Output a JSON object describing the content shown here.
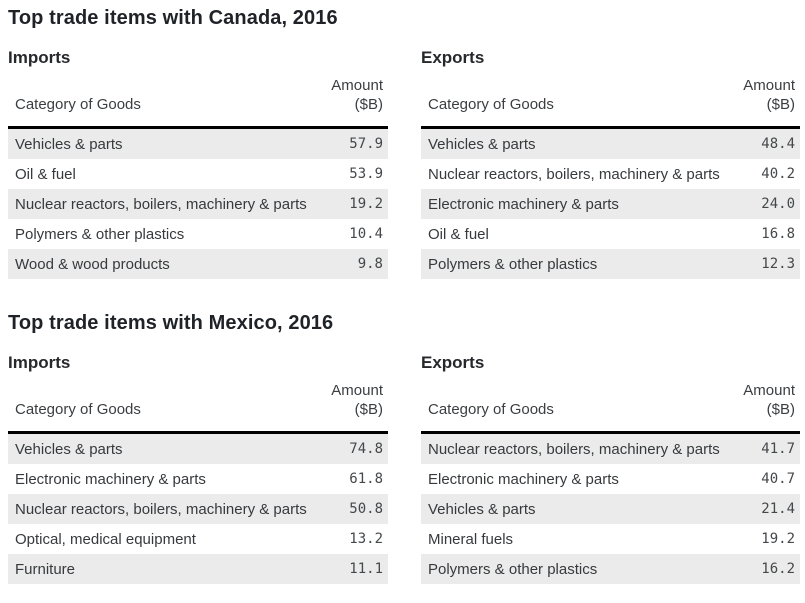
{
  "table_headers": {
    "category": "Category of Goods",
    "amount_line1": "Amount",
    "amount_line2": "($B)"
  },
  "colors": {
    "row_alt_bg": "#ebebeb",
    "header_rule": "#000000",
    "title_text": "#1f2227",
    "body_text": "#373a3d"
  },
  "sections": [
    {
      "title": "Top trade items with Canada, 2016",
      "tables": [
        {
          "heading": "Imports",
          "rows": [
            {
              "category": "Vehicles & parts",
              "amount": "57.9"
            },
            {
              "category": "Oil & fuel",
              "amount": "53.9"
            },
            {
              "category": "Nuclear reactors, boilers, machinery & parts",
              "amount": "19.2"
            },
            {
              "category": "Polymers & other plastics",
              "amount": "10.4"
            },
            {
              "category": "Wood & wood products",
              "amount": "9.8"
            }
          ]
        },
        {
          "heading": "Exports",
          "rows": [
            {
              "category": "Vehicles & parts",
              "amount": "48.4"
            },
            {
              "category": "Nuclear reactors, boilers, machinery & parts",
              "amount": "40.2"
            },
            {
              "category": "Electronic machinery & parts",
              "amount": "24.0"
            },
            {
              "category": "Oil & fuel",
              "amount": "16.8"
            },
            {
              "category": "Polymers & other plastics",
              "amount": "12.3"
            }
          ]
        }
      ]
    },
    {
      "title": "Top trade items with Mexico, 2016",
      "tables": [
        {
          "heading": "Imports",
          "rows": [
            {
              "category": "Vehicles & parts",
              "amount": "74.8"
            },
            {
              "category": "Electronic machinery & parts",
              "amount": "61.8"
            },
            {
              "category": "Nuclear reactors, boilers, machinery & parts",
              "amount": "50.8"
            },
            {
              "category": "Optical, medical equipment",
              "amount": "13.2"
            },
            {
              "category": "Furniture",
              "amount": "11.1"
            }
          ]
        },
        {
          "heading": "Exports",
          "rows": [
            {
              "category": "Nuclear reactors, boilers, machinery & parts",
              "amount": "41.7"
            },
            {
              "category": "Electronic machinery & parts",
              "amount": "40.7"
            },
            {
              "category": "Vehicles & parts",
              "amount": "21.4"
            },
            {
              "category": "Mineral fuels",
              "amount": "19.2"
            },
            {
              "category": "Polymers & other plastics",
              "amount": "16.2"
            }
          ]
        }
      ]
    }
  ],
  "chart_data": [
    {
      "type": "table",
      "title": "Top trade items with Canada, 2016 — Imports",
      "columns": [
        "Category of Goods",
        "Amount ($B)"
      ],
      "categories": [
        "Vehicles & parts",
        "Oil & fuel",
        "Nuclear reactors, boilers, machinery & parts",
        "Polymers & other plastics",
        "Wood & wood products"
      ],
      "values": [
        57.9,
        53.9,
        19.2,
        10.4,
        9.8
      ]
    },
    {
      "type": "table",
      "title": "Top trade items with Canada, 2016 — Exports",
      "columns": [
        "Category of Goods",
        "Amount ($B)"
      ],
      "categories": [
        "Vehicles & parts",
        "Nuclear reactors, boilers, machinery & parts",
        "Electronic machinery & parts",
        "Oil & fuel",
        "Polymers & other plastics"
      ],
      "values": [
        48.4,
        40.2,
        24.0,
        16.8,
        12.3
      ]
    },
    {
      "type": "table",
      "title": "Top trade items with Mexico, 2016 — Imports",
      "columns": [
        "Category of Goods",
        "Amount ($B)"
      ],
      "categories": [
        "Vehicles & parts",
        "Electronic machinery & parts",
        "Nuclear reactors, boilers, machinery & parts",
        "Optical, medical equipment",
        "Furniture"
      ],
      "values": [
        74.8,
        61.8,
        50.8,
        13.2,
        11.1
      ]
    },
    {
      "type": "table",
      "title": "Top trade items with Mexico, 2016 — Exports",
      "columns": [
        "Category of Goods",
        "Amount ($B)"
      ],
      "categories": [
        "Nuclear reactors, boilers, machinery & parts",
        "Electronic machinery & parts",
        "Vehicles & parts",
        "Mineral fuels",
        "Polymers & other plastics"
      ],
      "values": [
        41.7,
        40.7,
        21.4,
        19.2,
        16.2
      ]
    }
  ]
}
